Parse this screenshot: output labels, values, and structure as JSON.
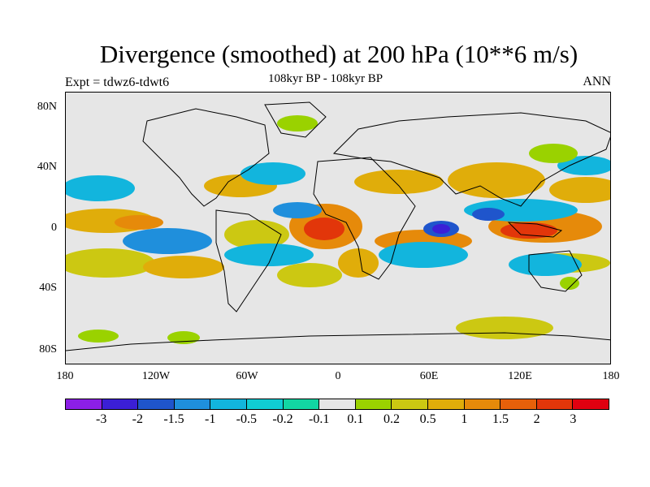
{
  "title": "Divergence (smoothed) at 200 hPa (10**6 m/s)",
  "expt_label": "Expt = tdwz6-tdwt6",
  "period_label": "108kyr BP - 108kyr BP",
  "season_label": "ANN",
  "lat_labels": [
    "80N",
    "40N",
    "0",
    "40S",
    "80S"
  ],
  "lon_labels": [
    "180",
    "120W",
    "60W",
    "0",
    "60E",
    "120E",
    "180"
  ],
  "colorbar": {
    "colors": [
      "#8c1fe6",
      "#3b1fd6",
      "#1f55cc",
      "#1f8fdc",
      "#12b5dd",
      "#10cdd4",
      "#12d6a3",
      "#e6e6e6",
      "#9ad200",
      "#ccc812",
      "#e0ad0a",
      "#e68a0a",
      "#e6600a",
      "#e2360a",
      "#e00010"
    ],
    "labels": [
      "-3",
      "-2",
      "-1.5",
      "-1",
      "-0.5",
      "-0.2",
      "-0.1",
      "0.1",
      "0.2",
      "0.5",
      "1",
      "1.5",
      "2",
      "3"
    ]
  },
  "legend_colors": {
    "negative_strong": "#3b1fd6",
    "negative": "#1f8fdc",
    "negative_weak": "#12d6a3",
    "neutral": "#e6e6e6",
    "positive_weak": "#9ad200",
    "positive": "#e0ad0a",
    "positive_strong": "#e2360a"
  }
}
